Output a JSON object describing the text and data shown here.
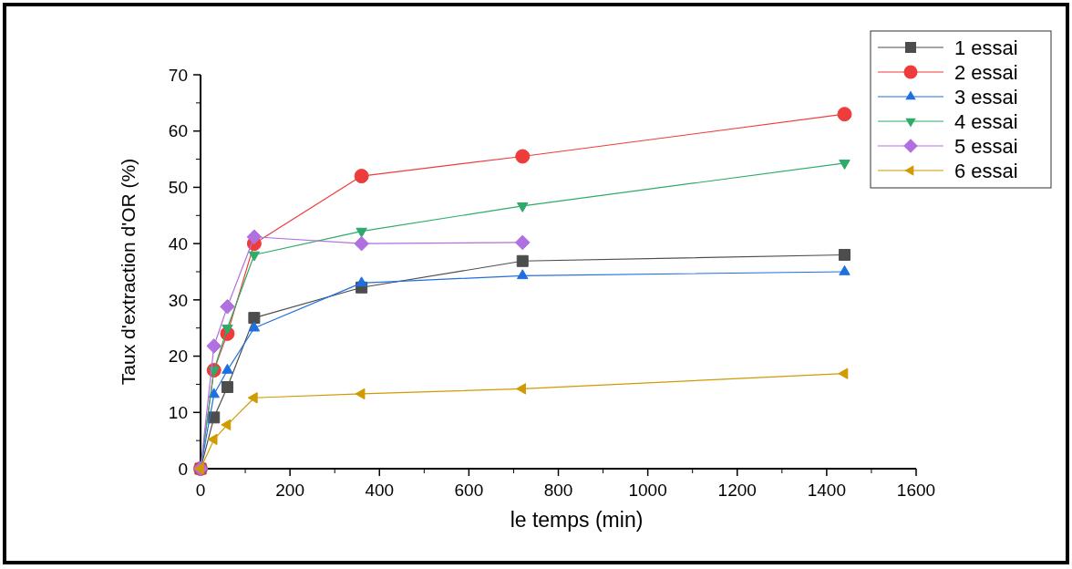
{
  "chart_data": {
    "type": "line",
    "xlabel": "le temps (min)",
    "ylabel": "Taux d'extraction d'OR (%)",
    "x": [
      0,
      30,
      60,
      120,
      360,
      720,
      1440
    ],
    "xlim": [
      0,
      1600
    ],
    "xticks": [
      0,
      200,
      400,
      600,
      800,
      1000,
      1200,
      1400,
      1600
    ],
    "ylim": [
      0,
      70
    ],
    "yticks": [
      0,
      10,
      20,
      30,
      40,
      50,
      60,
      70
    ],
    "legend": "top right",
    "grid": false,
    "series": [
      {
        "name": "1 essai",
        "color": "#4d4d4d",
        "marker": "square",
        "values": [
          0,
          9.1,
          14.5,
          26.8,
          32.2,
          36.9,
          38.0
        ]
      },
      {
        "name": "2 essai",
        "color": "#ee3b3b",
        "marker": "circle",
        "values": [
          0,
          17.5,
          24,
          40,
          52,
          55.5,
          63
        ]
      },
      {
        "name": "3 essai",
        "color": "#1f6fe0",
        "marker": "triangle",
        "values": [
          0,
          13.2,
          17.5,
          25,
          33,
          34.3,
          35
        ]
      },
      {
        "name": "4 essai",
        "color": "#2eaa6a",
        "marker": "triangle-down",
        "values": [
          0,
          17.5,
          25,
          38,
          42.2,
          46.7,
          54.3
        ]
      },
      {
        "name": "5 essai",
        "color": "#b070e0",
        "marker": "diamond",
        "values": [
          0,
          21.8,
          28.8,
          41.2,
          40,
          40.2,
          null
        ]
      },
      {
        "name": "6 essai",
        "color": "#d09a00",
        "marker": "triangle-left",
        "values": [
          0,
          5.2,
          7.8,
          12.6,
          13.3,
          14.2,
          16.9
        ]
      }
    ]
  }
}
